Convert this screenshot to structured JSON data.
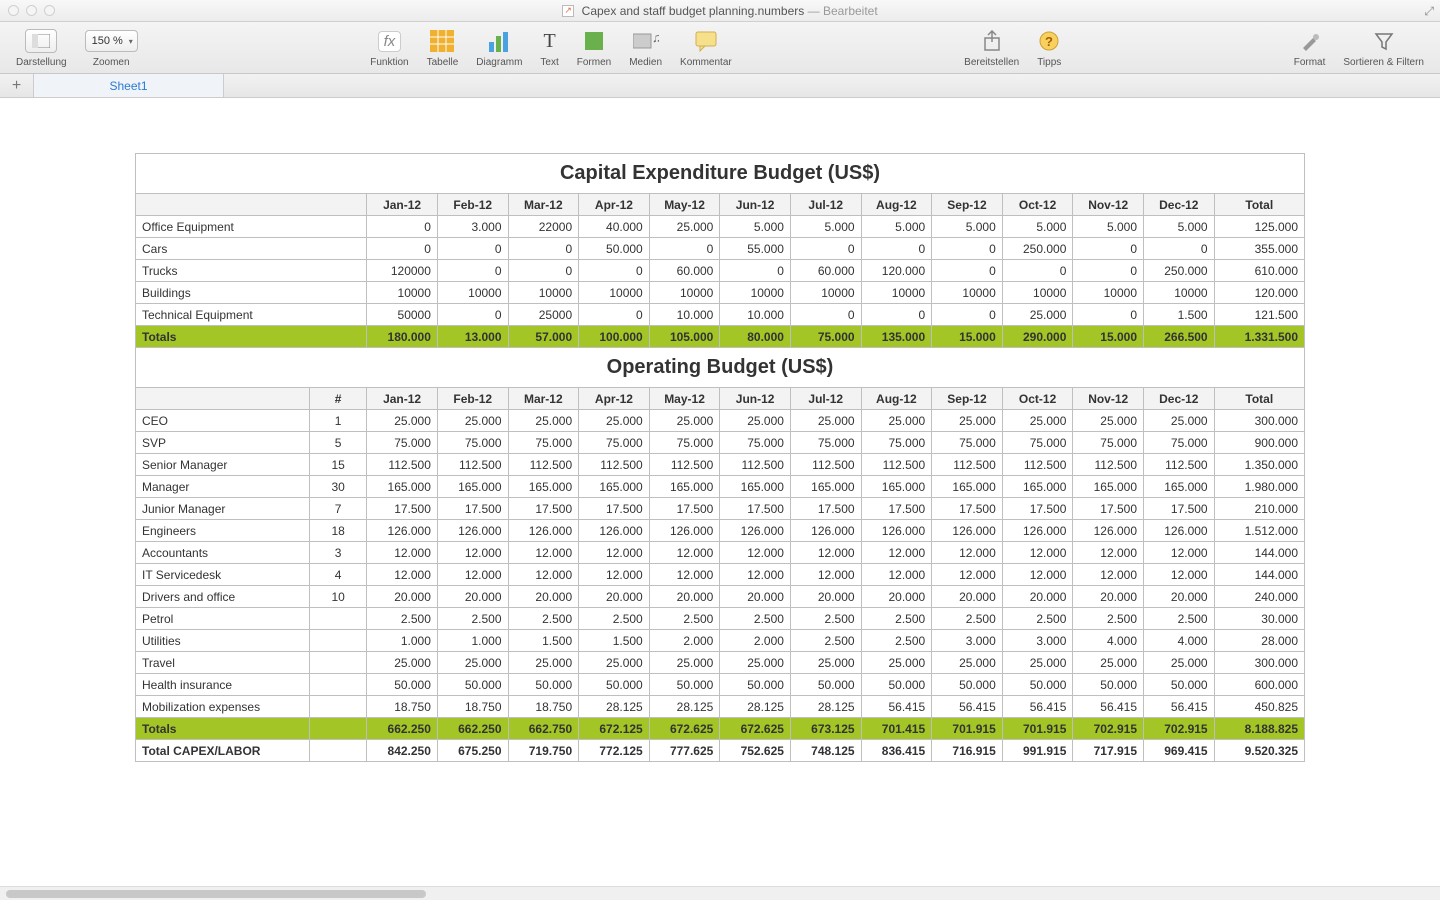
{
  "window": {
    "filename": "Capex and staff budget planning.numbers",
    "status": "Bearbeitet"
  },
  "toolbar": {
    "view_label": "Darstellung",
    "zoom_label": "Zoomen",
    "zoom_value": "150 %",
    "function_label": "Funktion",
    "table_label": "Tabelle",
    "chart_label": "Diagramm",
    "text_label": "Text",
    "shapes_label": "Formen",
    "media_label": "Medien",
    "comment_label": "Kommentar",
    "share_label": "Bereitstellen",
    "tips_label": "Tipps",
    "format_label": "Format",
    "sort_label": "Sortieren & Filtern"
  },
  "tabs": {
    "sheet1": "Sheet1"
  },
  "colors": {
    "totals_row": "#a3c626",
    "header_bg": "#f3f3f3",
    "border": "#bfbfbf"
  },
  "months": [
    "Jan-12",
    "Feb-12",
    "Mar-12",
    "Apr-12",
    "May-12",
    "Jun-12",
    "Jul-12",
    "Aug-12",
    "Sep-12",
    "Oct-12",
    "Nov-12",
    "Dec-12"
  ],
  "capex": {
    "title": "Capital Expenditure Budget (US$)",
    "total_label": "Total",
    "totals_label": "Totals",
    "rows": [
      {
        "label": "Office Equipment",
        "v": [
          "0",
          "3.000",
          "22000",
          "40.000",
          "25.000",
          "5.000",
          "5.000",
          "5.000",
          "5.000",
          "5.000",
          "5.000",
          "5.000"
        ],
        "total": "125.000"
      },
      {
        "label": "Cars",
        "v": [
          "0",
          "0",
          "0",
          "50.000",
          "0",
          "55.000",
          "0",
          "0",
          "0",
          "250.000",
          "0",
          "0"
        ],
        "total": "355.000"
      },
      {
        "label": "Trucks",
        "v": [
          "120000",
          "0",
          "0",
          "0",
          "60.000",
          "0",
          "60.000",
          "120.000",
          "0",
          "0",
          "0",
          "250.000"
        ],
        "total": "610.000"
      },
      {
        "label": "Buildings",
        "v": [
          "10000",
          "10000",
          "10000",
          "10000",
          "10000",
          "10000",
          "10000",
          "10000",
          "10000",
          "10000",
          "10000",
          "10000"
        ],
        "total": "120.000"
      },
      {
        "label": "Technical Equipment",
        "v": [
          "50000",
          "0",
          "25000",
          "0",
          "10.000",
          "10.000",
          "0",
          "0",
          "0",
          "25.000",
          "0",
          "1.500"
        ],
        "total": "121.500"
      }
    ],
    "totals": {
      "v": [
        "180.000",
        "13.000",
        "57.000",
        "100.000",
        "105.000",
        "80.000",
        "75.000",
        "135.000",
        "15.000",
        "290.000",
        "15.000",
        "266.500"
      ],
      "total": "1.331.500"
    }
  },
  "opex": {
    "title": "Operating Budget (US$)",
    "count_label": "#",
    "total_label": "Total",
    "totals_label": "Totals",
    "grand_label": "Total CAPEX/LABOR",
    "rows": [
      {
        "label": "CEO",
        "count": "1",
        "v": [
          "25.000",
          "25.000",
          "25.000",
          "25.000",
          "25.000",
          "25.000",
          "25.000",
          "25.000",
          "25.000",
          "25.000",
          "25.000",
          "25.000"
        ],
        "total": "300.000"
      },
      {
        "label": "SVP",
        "count": "5",
        "v": [
          "75.000",
          "75.000",
          "75.000",
          "75.000",
          "75.000",
          "75.000",
          "75.000",
          "75.000",
          "75.000",
          "75.000",
          "75.000",
          "75.000"
        ],
        "total": "900.000"
      },
      {
        "label": "Senior Manager",
        "count": "15",
        "v": [
          "112.500",
          "112.500",
          "112.500",
          "112.500",
          "112.500",
          "112.500",
          "112.500",
          "112.500",
          "112.500",
          "112.500",
          "112.500",
          "112.500"
        ],
        "total": "1.350.000"
      },
      {
        "label": "Manager",
        "count": "30",
        "v": [
          "165.000",
          "165.000",
          "165.000",
          "165.000",
          "165.000",
          "165.000",
          "165.000",
          "165.000",
          "165.000",
          "165.000",
          "165.000",
          "165.000"
        ],
        "total": "1.980.000"
      },
      {
        "label": "Junior Manager",
        "count": "7",
        "v": [
          "17.500",
          "17.500",
          "17.500",
          "17.500",
          "17.500",
          "17.500",
          "17.500",
          "17.500",
          "17.500",
          "17.500",
          "17.500",
          "17.500"
        ],
        "total": "210.000"
      },
      {
        "label": "Engineers",
        "count": "18",
        "v": [
          "126.000",
          "126.000",
          "126.000",
          "126.000",
          "126.000",
          "126.000",
          "126.000",
          "126.000",
          "126.000",
          "126.000",
          "126.000",
          "126.000"
        ],
        "total": "1.512.000"
      },
      {
        "label": "Accountants",
        "count": "3",
        "v": [
          "12.000",
          "12.000",
          "12.000",
          "12.000",
          "12.000",
          "12.000",
          "12.000",
          "12.000",
          "12.000",
          "12.000",
          "12.000",
          "12.000"
        ],
        "total": "144.000"
      },
      {
        "label": "IT Servicedesk",
        "count": "4",
        "v": [
          "12.000",
          "12.000",
          "12.000",
          "12.000",
          "12.000",
          "12.000",
          "12.000",
          "12.000",
          "12.000",
          "12.000",
          "12.000",
          "12.000"
        ],
        "total": "144.000"
      },
      {
        "label": "Drivers and office",
        "count": "10",
        "v": [
          "20.000",
          "20.000",
          "20.000",
          "20.000",
          "20.000",
          "20.000",
          "20.000",
          "20.000",
          "20.000",
          "20.000",
          "20.000",
          "20.000"
        ],
        "total": "240.000"
      },
      {
        "label": "Petrol",
        "count": "",
        "v": [
          "2.500",
          "2.500",
          "2.500",
          "2.500",
          "2.500",
          "2.500",
          "2.500",
          "2.500",
          "2.500",
          "2.500",
          "2.500",
          "2.500"
        ],
        "total": "30.000"
      },
      {
        "label": "Utilities",
        "count": "",
        "v": [
          "1.000",
          "1.000",
          "1.500",
          "1.500",
          "2.000",
          "2.000",
          "2.500",
          "2.500",
          "3.000",
          "3.000",
          "4.000",
          "4.000"
        ],
        "total": "28.000"
      },
      {
        "label": "Travel",
        "count": "",
        "v": [
          "25.000",
          "25.000",
          "25.000",
          "25.000",
          "25.000",
          "25.000",
          "25.000",
          "25.000",
          "25.000",
          "25.000",
          "25.000",
          "25.000"
        ],
        "total": "300.000"
      },
      {
        "label": "Health insurance",
        "count": "",
        "v": [
          "50.000",
          "50.000",
          "50.000",
          "50.000",
          "50.000",
          "50.000",
          "50.000",
          "50.000",
          "50.000",
          "50.000",
          "50.000",
          "50.000"
        ],
        "total": "600.000"
      },
      {
        "label": "Mobilization expenses",
        "count": "",
        "v": [
          "18.750",
          "18.750",
          "18.750",
          "28.125",
          "28.125",
          "28.125",
          "28.125",
          "56.415",
          "56.415",
          "56.415",
          "56.415",
          "56.415"
        ],
        "total": "450.825"
      }
    ],
    "totals": {
      "v": [
        "662.250",
        "662.250",
        "662.750",
        "672.125",
        "672.625",
        "672.625",
        "673.125",
        "701.415",
        "701.915",
        "701.915",
        "702.915",
        "702.915"
      ],
      "total": "8.188.825"
    },
    "grand": {
      "v": [
        "842.250",
        "675.250",
        "719.750",
        "772.125",
        "777.625",
        "752.625",
        "748.125",
        "836.415",
        "716.915",
        "991.915",
        "717.915",
        "969.415"
      ],
      "total": "9.520.325"
    }
  }
}
